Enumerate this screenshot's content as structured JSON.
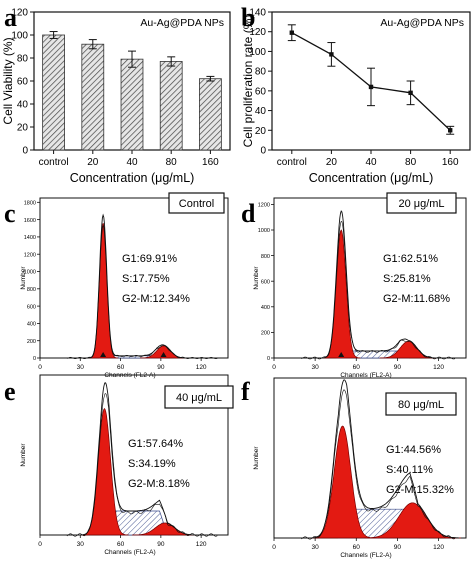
{
  "chart_data": [
    {
      "panel": "a",
      "type": "bar",
      "legend": "Au-Ag@PDA NPs",
      "categories": [
        "control",
        "20",
        "40",
        "80",
        "160"
      ],
      "values": [
        100,
        92,
        79,
        77,
        62
      ],
      "errors": [
        3,
        4,
        7,
        4,
        2
      ],
      "xlabel": "Concentration (μg/mL)",
      "ylabel": "Cell Viability (%)",
      "ylim": [
        0,
        120
      ],
      "yticks": [
        0,
        20,
        40,
        60,
        80,
        100,
        120
      ],
      "fill": "diagonal hatch",
      "legend_position": "top-right"
    },
    {
      "panel": "b",
      "type": "line",
      "legend": "Au-Ag@PDA NPs",
      "categories": [
        "control",
        "20",
        "40",
        "80",
        "160"
      ],
      "values": [
        119,
        97,
        64,
        58,
        20
      ],
      "errors": [
        8,
        12,
        19,
        12,
        4
      ],
      "xlabel": "Concentration (μg/mL)",
      "ylabel": "Cell proliferation rate (%)",
      "ylim": [
        0,
        140
      ],
      "yticks": [
        0,
        20,
        40,
        60,
        80,
        100,
        120,
        140
      ],
      "legend_position": "top-right"
    },
    {
      "panel": "c",
      "type": "area",
      "label": "Control",
      "xlabel": "Channels (FL2-A)",
      "ylabel": "Number",
      "xticks": [
        0,
        30,
        60,
        90,
        120
      ],
      "yticks": [
        0,
        200,
        400,
        600,
        800,
        1000,
        1200,
        1400,
        1600,
        1800
      ],
      "ylim": [
        0,
        1850
      ],
      "xlim": [
        0,
        140
      ],
      "stats": [
        "G1:69.91%",
        "S:17.75%",
        "G2-M:12.34%"
      ],
      "g1": {
        "center": 47,
        "height": 1560,
        "width": 2.7
      },
      "s": {
        "from": 47,
        "to": 90,
        "height": 25
      },
      "g2": {
        "center": 92,
        "height": 140,
        "width": 5
      },
      "envelope_peak": 1640,
      "markers": [
        47,
        92
      ]
    },
    {
      "panel": "d",
      "type": "area",
      "label": "20 μg/mL",
      "xlabel": "Channels (FL2-A)",
      "ylabel": "Number",
      "xticks": [
        0,
        30,
        60,
        90,
        120
      ],
      "yticks": [
        0,
        200,
        400,
        600,
        800,
        1000,
        1200
      ],
      "ylim": [
        0,
        1250
      ],
      "xlim": [
        0,
        140
      ],
      "stats": [
        "G1:62.51%",
        "S:25.81%",
        "G2-M:11.68%"
      ],
      "g1": {
        "center": 49,
        "height": 1000,
        "width": 3.5
      },
      "s": {
        "from": 49,
        "to": 95,
        "height": 55
      },
      "g2": {
        "center": 98,
        "height": 130,
        "width": 6
      },
      "envelope_peak": 1120,
      "markers": [
        49
      ]
    },
    {
      "panel": "e",
      "type": "area",
      "label": "40 μg/mL",
      "xlabel": "Channels (FL2-A)",
      "ylabel": "Number",
      "xticks": [
        0,
        30,
        60,
        90,
        120
      ],
      "yticks": [],
      "ylim": [
        0,
        1000
      ],
      "xlim": [
        0,
        140
      ],
      "stats": [
        "G1:57.64%",
        "S:34.19%",
        "G2-M:8.18%"
      ],
      "g1": {
        "center": 48,
        "height": 790,
        "width": 4.5
      },
      "s": {
        "from": 48,
        "to": 92,
        "height": 150
      },
      "g2": {
        "center": 93,
        "height": 75,
        "width": 7
      },
      "envelope_peak": 870,
      "markers": []
    },
    {
      "panel": "f",
      "type": "area",
      "label": "80 μg/mL",
      "xlabel": "Channels (FL2-A)",
      "ylabel": "Number",
      "xticks": [
        0,
        30,
        60,
        90,
        120
      ],
      "yticks": [],
      "ylim": [
        0,
        1000
      ],
      "xlim": [
        0,
        140
      ],
      "stats": [
        "G1:44.56%",
        "S:40.11%",
        "G2-M:15.32%"
      ],
      "g1": {
        "center": 50,
        "height": 700,
        "width": 6
      },
      "s": {
        "from": 50,
        "to": 102,
        "height": 180
      },
      "g2": {
        "center": 101,
        "height": 220,
        "width": 10
      },
      "envelope_peak": 880,
      "markers": []
    }
  ],
  "colors": {
    "g1_fill": "#e31a12",
    "axis": "#111111",
    "bar_fill": "#d9d9d9",
    "hatch": "#555555",
    "s_hatch": "#3a4a8a"
  }
}
